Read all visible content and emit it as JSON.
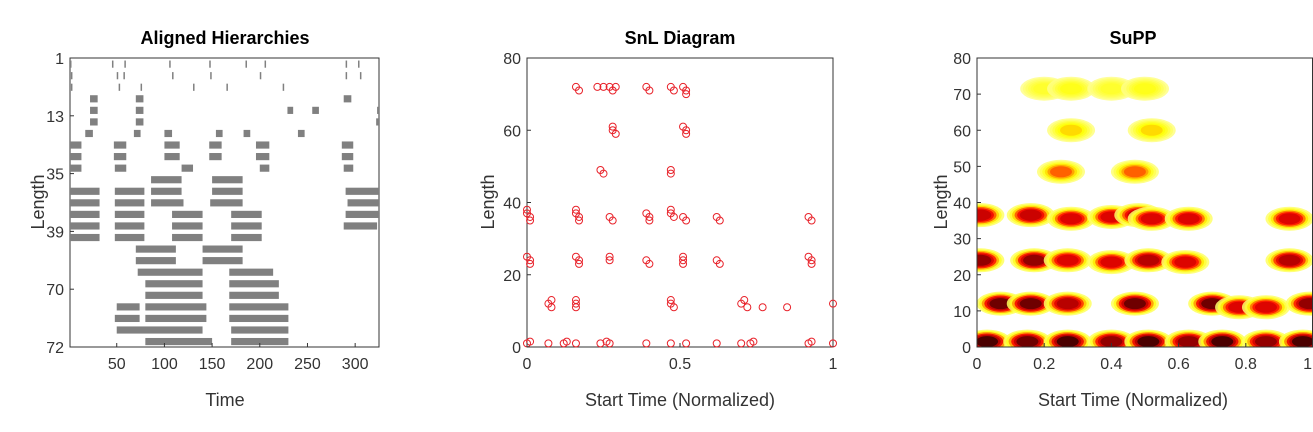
{
  "chart_data": [
    {
      "type": "heatmap",
      "title": "Aligned Hierarchies",
      "xlabel": "Time",
      "ylabel": "Length",
      "xlim": [
        1,
        325
      ],
      "xticks": [
        50,
        100,
        150,
        200,
        250,
        300
      ],
      "yticks": [
        "1",
        "13",
        "35",
        "39",
        "70",
        "72"
      ],
      "colors": {
        "filled": "#808080",
        "empty": "#ffffff"
      },
      "rows": 25,
      "bands": [
        {
          "row": 0,
          "segments": [
            [
              1,
              2
            ],
            [
              45,
              46
            ],
            [
              58,
              59
            ],
            [
              105,
              106
            ],
            [
              147,
              148
            ],
            [
              185,
              186
            ],
            [
              205,
              206
            ],
            [
              290,
              291
            ],
            [
              303,
              304
            ]
          ]
        },
        {
          "row": 1,
          "segments": [
            [
              2,
              3
            ],
            [
              50,
              51
            ],
            [
              57,
              58
            ],
            [
              108,
              109
            ],
            [
              148,
              149
            ],
            [
              200,
              201
            ],
            [
              290,
              291
            ],
            [
              305,
              306
            ]
          ]
        },
        {
          "row": 2,
          "segments": [
            [
              2,
              3
            ],
            [
              52,
              53
            ],
            [
              75,
              76
            ],
            [
              130,
              131
            ],
            [
              165,
              166
            ],
            [
              224,
              225
            ]
          ]
        },
        {
          "row": 3,
          "segments": [
            [
              22,
              30
            ],
            [
              70,
              78
            ],
            [
              288,
              296
            ]
          ]
        },
        {
          "row": 4,
          "segments": [
            [
              22,
              30
            ],
            [
              70,
              78
            ],
            [
              229,
              235
            ],
            [
              255,
              262
            ],
            [
              323,
              325
            ]
          ]
        },
        {
          "row": 5,
          "segments": [
            [
              22,
              30
            ],
            [
              70,
              78
            ],
            [
              322,
              325
            ]
          ]
        },
        {
          "row": 6,
          "segments": [
            [
              17,
              25
            ],
            [
              68,
              75
            ],
            [
              100,
              108
            ],
            [
              154,
              161
            ],
            [
              183,
              190
            ],
            [
              240,
              247
            ]
          ]
        },
        {
          "row": 7,
          "segments": [
            [
              1,
              13
            ],
            [
              47,
              60
            ],
            [
              100,
              116
            ],
            [
              147,
              160
            ],
            [
              196,
              210
            ],
            [
              286,
              298
            ]
          ]
        },
        {
          "row": 8,
          "segments": [
            [
              1,
              13
            ],
            [
              47,
              60
            ],
            [
              100,
              116
            ],
            [
              147,
              160
            ],
            [
              196,
              210
            ],
            [
              286,
              298
            ]
          ]
        },
        {
          "row": 9,
          "segments": [
            [
              1,
              13
            ],
            [
              48,
              60
            ],
            [
              118,
              130
            ],
            [
              200,
              210
            ],
            [
              288,
              298
            ]
          ]
        },
        {
          "row": 10,
          "segments": [
            [
              86,
              118
            ],
            [
              150,
              182
            ]
          ]
        },
        {
          "row": 11,
          "segments": [
            [
              1,
              32
            ],
            [
              48,
              79
            ],
            [
              86,
              118
            ],
            [
              150,
              182
            ],
            [
              290,
              325
            ]
          ]
        },
        {
          "row": 12,
          "segments": [
            [
              1,
              32
            ],
            [
              48,
              79
            ],
            [
              86,
              120
            ],
            [
              148,
              182
            ],
            [
              292,
              325
            ]
          ]
        },
        {
          "row": 13,
          "segments": [
            [
              1,
              32
            ],
            [
              48,
              79
            ],
            [
              108,
              140
            ],
            [
              170,
              202
            ],
            [
              290,
              325
            ]
          ]
        },
        {
          "row": 14,
          "segments": [
            [
              1,
              32
            ],
            [
              48,
              79
            ],
            [
              108,
              140
            ],
            [
              170,
              202
            ],
            [
              288,
              323
            ]
          ]
        },
        {
          "row": 15,
          "segments": [
            [
              1,
              32
            ],
            [
              48,
              79
            ],
            [
              108,
              140
            ],
            [
              170,
              202
            ]
          ]
        },
        {
          "row": 16,
          "segments": [
            [
              70,
              112
            ],
            [
              140,
              182
            ]
          ]
        },
        {
          "row": 17,
          "segments": [
            [
              70,
              112
            ],
            [
              140,
              182
            ]
          ]
        },
        {
          "row": 18,
          "segments": [
            [
              72,
              140
            ],
            [
              168,
              214
            ]
          ]
        },
        {
          "row": 19,
          "segments": [
            [
              80,
              140
            ],
            [
              168,
              220
            ]
          ]
        },
        {
          "row": 20,
          "segments": [
            [
              80,
              140
            ],
            [
              168,
              220
            ]
          ]
        },
        {
          "row": 21,
          "segments": [
            [
              50,
              74
            ],
            [
              80,
              144
            ],
            [
              168,
              230
            ]
          ]
        },
        {
          "row": 22,
          "segments": [
            [
              48,
              74
            ],
            [
              80,
              144
            ],
            [
              168,
              230
            ]
          ]
        },
        {
          "row": 23,
          "segments": [
            [
              50,
              140
            ],
            [
              170,
              230
            ]
          ]
        },
        {
          "row": 24,
          "segments": [
            [
              80,
              150
            ],
            [
              170,
              230
            ]
          ]
        }
      ]
    },
    {
      "type": "scatter",
      "title": "SnL Diagram",
      "xlabel": "Start Time (Normalized)",
      "ylabel": "Length",
      "xlim": [
        0,
        1
      ],
      "ylim": [
        0,
        80
      ],
      "xticks": [
        0,
        0.5,
        1
      ],
      "yticks": [
        0,
        20,
        40,
        60,
        80
      ],
      "marker_color": "#e8222a",
      "points": [
        [
          0.0,
          1
        ],
        [
          0.01,
          1.5
        ],
        [
          0.07,
          1
        ],
        [
          0.12,
          1
        ],
        [
          0.13,
          1.5
        ],
        [
          0.16,
          1
        ],
        [
          0.24,
          1
        ],
        [
          0.26,
          1.5
        ],
        [
          0.27,
          1
        ],
        [
          0.39,
          1
        ],
        [
          0.47,
          1
        ],
        [
          0.52,
          1
        ],
        [
          0.62,
          1
        ],
        [
          0.7,
          1
        ],
        [
          0.73,
          1
        ],
        [
          0.74,
          1.5
        ],
        [
          0.92,
          1
        ],
        [
          0.93,
          1.5
        ],
        [
          1.0,
          1
        ],
        [
          0.07,
          12
        ],
        [
          0.08,
          13
        ],
        [
          0.08,
          11
        ],
        [
          0.16,
          12
        ],
        [
          0.16,
          13
        ],
        [
          0.16,
          11
        ],
        [
          0.47,
          12
        ],
        [
          0.47,
          13
        ],
        [
          0.48,
          11
        ],
        [
          0.7,
          12
        ],
        [
          0.71,
          13
        ],
        [
          0.72,
          11
        ],
        [
          0.77,
          11
        ],
        [
          0.85,
          11
        ],
        [
          1.0,
          12
        ],
        [
          0.0,
          25
        ],
        [
          0.01,
          24
        ],
        [
          0.01,
          23
        ],
        [
          0.16,
          25
        ],
        [
          0.17,
          24
        ],
        [
          0.17,
          23
        ],
        [
          0.27,
          25
        ],
        [
          0.27,
          24
        ],
        [
          0.39,
          24
        ],
        [
          0.4,
          23
        ],
        [
          0.51,
          25
        ],
        [
          0.51,
          24
        ],
        [
          0.51,
          23
        ],
        [
          0.62,
          24
        ],
        [
          0.63,
          23
        ],
        [
          0.92,
          25
        ],
        [
          0.93,
          24
        ],
        [
          0.93,
          23
        ],
        [
          0.0,
          38
        ],
        [
          0.0,
          37
        ],
        [
          0.01,
          36
        ],
        [
          0.01,
          35
        ],
        [
          0.16,
          38
        ],
        [
          0.16,
          37
        ],
        [
          0.17,
          36
        ],
        [
          0.17,
          35
        ],
        [
          0.27,
          36
        ],
        [
          0.28,
          35
        ],
        [
          0.39,
          37
        ],
        [
          0.4,
          36
        ],
        [
          0.4,
          35
        ],
        [
          0.47,
          38
        ],
        [
          0.47,
          37
        ],
        [
          0.48,
          36
        ],
        [
          0.51,
          36
        ],
        [
          0.52,
          35
        ],
        [
          0.62,
          36
        ],
        [
          0.63,
          35
        ],
        [
          0.92,
          36
        ],
        [
          0.93,
          35
        ],
        [
          0.24,
          49
        ],
        [
          0.25,
          48
        ],
        [
          0.47,
          49
        ],
        [
          0.47,
          48
        ],
        [
          0.28,
          61
        ],
        [
          0.28,
          60
        ],
        [
          0.29,
          59
        ],
        [
          0.51,
          61
        ],
        [
          0.52,
          60
        ],
        [
          0.52,
          59
        ],
        [
          0.16,
          72
        ],
        [
          0.17,
          71
        ],
        [
          0.23,
          72
        ],
        [
          0.25,
          72
        ],
        [
          0.27,
          72
        ],
        [
          0.28,
          71
        ],
        [
          0.29,
          72
        ],
        [
          0.39,
          72
        ],
        [
          0.4,
          71
        ],
        [
          0.47,
          72
        ],
        [
          0.48,
          71
        ],
        [
          0.51,
          72
        ],
        [
          0.52,
          71
        ],
        [
          0.52,
          70
        ]
      ]
    },
    {
      "type": "heatmap",
      "title": "SuPP",
      "xlabel": "Start Time (Normalized)",
      "ylabel": "Length",
      "xlim": [
        0,
        1
      ],
      "ylim": [
        0,
        80
      ],
      "xticks": [
        0,
        0.2,
        0.4,
        0.6,
        0.8,
        1
      ],
      "yticks": [
        0,
        10,
        20,
        30,
        40,
        50,
        60,
        70,
        80
      ],
      "colormap": "hot",
      "blobs": [
        {
          "x": 0.03,
          "y": 1.5,
          "i": 1.0
        },
        {
          "x": 0.15,
          "y": 1.5,
          "i": 0.95
        },
        {
          "x": 0.27,
          "y": 1.5,
          "i": 1.0
        },
        {
          "x": 0.4,
          "y": 1.5,
          "i": 0.9
        },
        {
          "x": 0.51,
          "y": 1.5,
          "i": 1.0
        },
        {
          "x": 0.63,
          "y": 1.5,
          "i": 0.9
        },
        {
          "x": 0.73,
          "y": 1.5,
          "i": 1.0
        },
        {
          "x": 0.86,
          "y": 1.5,
          "i": 0.9
        },
        {
          "x": 0.97,
          "y": 1.5,
          "i": 1.0
        },
        {
          "x": 0.07,
          "y": 12,
          "i": 0.95
        },
        {
          "x": 0.16,
          "y": 12,
          "i": 0.95
        },
        {
          "x": 0.27,
          "y": 12,
          "i": 0.85
        },
        {
          "x": 0.47,
          "y": 12,
          "i": 0.95
        },
        {
          "x": 0.7,
          "y": 12,
          "i": 0.95
        },
        {
          "x": 0.78,
          "y": 11,
          "i": 0.75
        },
        {
          "x": 0.86,
          "y": 11,
          "i": 0.75
        },
        {
          "x": 0.99,
          "y": 12,
          "i": 0.9
        },
        {
          "x": 0.01,
          "y": 24,
          "i": 0.9
        },
        {
          "x": 0.17,
          "y": 24,
          "i": 0.9
        },
        {
          "x": 0.27,
          "y": 24,
          "i": 0.75
        },
        {
          "x": 0.4,
          "y": 23.5,
          "i": 0.75
        },
        {
          "x": 0.51,
          "y": 24,
          "i": 0.85
        },
        {
          "x": 0.62,
          "y": 23.5,
          "i": 0.75
        },
        {
          "x": 0.93,
          "y": 24,
          "i": 0.85
        },
        {
          "x": 0.01,
          "y": 36.5,
          "i": 0.8
        },
        {
          "x": 0.16,
          "y": 36.5,
          "i": 0.8
        },
        {
          "x": 0.28,
          "y": 35.5,
          "i": 0.75
        },
        {
          "x": 0.4,
          "y": 36,
          "i": 0.75
        },
        {
          "x": 0.48,
          "y": 36.5,
          "i": 0.8
        },
        {
          "x": 0.52,
          "y": 35.5,
          "i": 0.75
        },
        {
          "x": 0.63,
          "y": 35.5,
          "i": 0.75
        },
        {
          "x": 0.93,
          "y": 35.5,
          "i": 0.75
        },
        {
          "x": 0.25,
          "y": 48.5,
          "i": 0.55
        },
        {
          "x": 0.47,
          "y": 48.5,
          "i": 0.55
        },
        {
          "x": 0.28,
          "y": 60,
          "i": 0.4
        },
        {
          "x": 0.52,
          "y": 60,
          "i": 0.4
        },
        {
          "x": 0.2,
          "y": 71.5,
          "i": 0.25
        },
        {
          "x": 0.28,
          "y": 71.5,
          "i": 0.3
        },
        {
          "x": 0.4,
          "y": 71.5,
          "i": 0.25
        },
        {
          "x": 0.5,
          "y": 71.5,
          "i": 0.3
        }
      ]
    }
  ]
}
